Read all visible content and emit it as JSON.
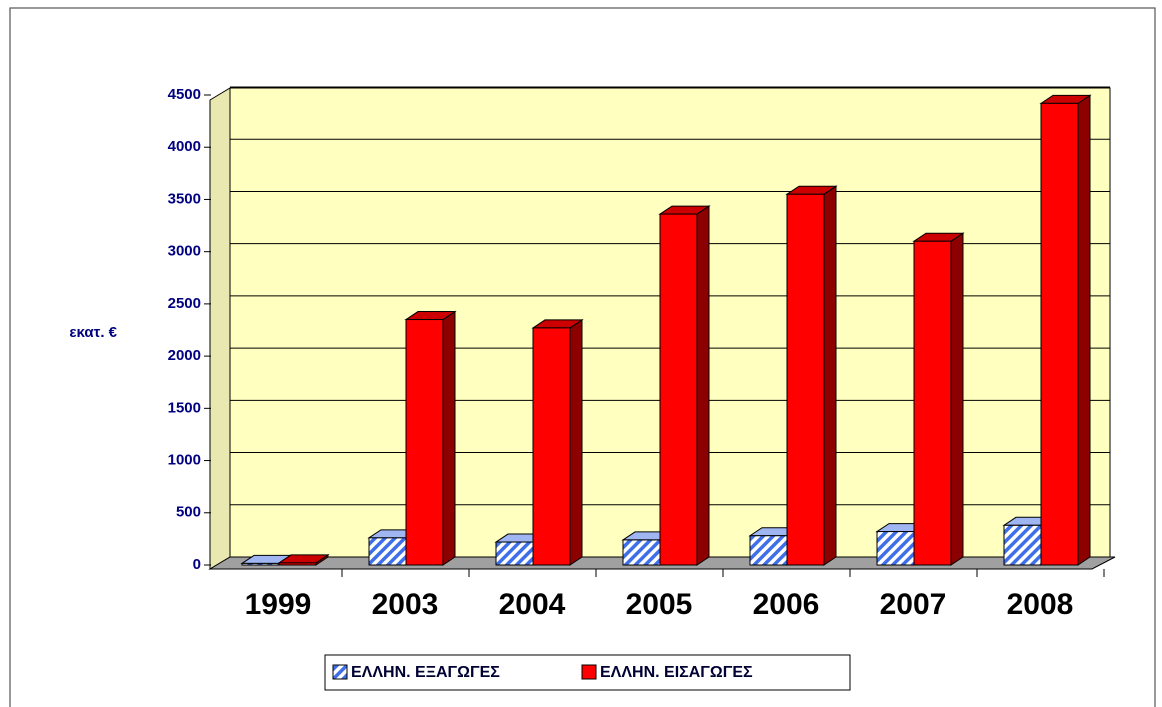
{
  "chart_data": {
    "type": "bar3d",
    "ylabel": "εκατ. €",
    "categories": [
      "1999",
      "2003",
      "2004",
      "2005",
      "2006",
      "2007",
      "2008"
    ],
    "series": [
      {
        "name": "ΕΛΛΗΝ. ΕΞΑΓΩΓΕΣ",
        "color": "#3f6fe8",
        "values": [
          15,
          260,
          220,
          240,
          280,
          320,
          380
        ]
      },
      {
        "name": "ΕΛΛΗΝ. ΕΙΣΑΓΩΓΕΣ",
        "color": "#ff0000",
        "values": [
          20,
          2350,
          2270,
          3360,
          3550,
          3100,
          4420
        ]
      }
    ],
    "ylim": [
      0,
      4500
    ],
    "yticks": [
      0,
      500,
      1000,
      1500,
      2000,
      2500,
      3000,
      3500,
      4000,
      4500
    ],
    "grid": true
  }
}
